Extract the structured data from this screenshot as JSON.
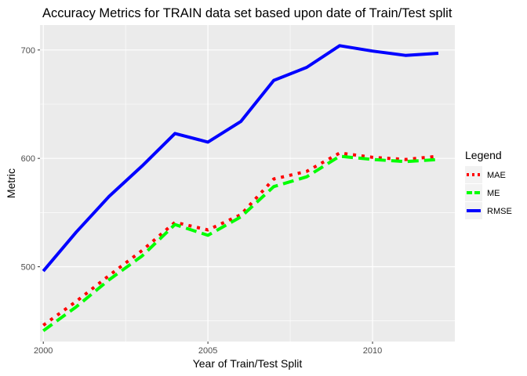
{
  "chart_data": {
    "type": "line",
    "title": "Accuracy Metrics for TRAIN data set based upon date of Train/Test split",
    "xlabel": "Year of Train/Test Split",
    "ylabel": "Metric",
    "xlim": [
      1999.9,
      2012.5
    ],
    "ylim": [
      431,
      723
    ],
    "x_ticks": [
      2000,
      2005,
      2010
    ],
    "y_ticks": [
      500,
      600,
      700
    ],
    "grid": true,
    "legend": {
      "title": "Legend",
      "position": "right"
    },
    "x": [
      2000,
      2001,
      2002,
      2003,
      2004,
      2005,
      2006,
      2007,
      2008,
      2009,
      2010,
      2011,
      2012
    ],
    "series": [
      {
        "name": "MAE",
        "color": "#FF0000",
        "line_style": "dotted",
        "values": [
          446,
          468,
          492,
          515,
          541,
          534,
          548,
          581,
          588,
          605,
          601,
          599,
          602
        ]
      },
      {
        "name": "ME",
        "color": "#00FF00",
        "line_style": "dashed",
        "values": [
          441,
          463,
          488,
          510,
          539,
          529,
          546,
          574,
          583,
          602,
          599,
          597,
          599
        ]
      },
      {
        "name": "RMSE",
        "color": "#0000FF",
        "line_style": "solid",
        "values": [
          496,
          532,
          565,
          593,
          623,
          615,
          634,
          672,
          684,
          704,
          699,
          695,
          697
        ]
      }
    ]
  }
}
